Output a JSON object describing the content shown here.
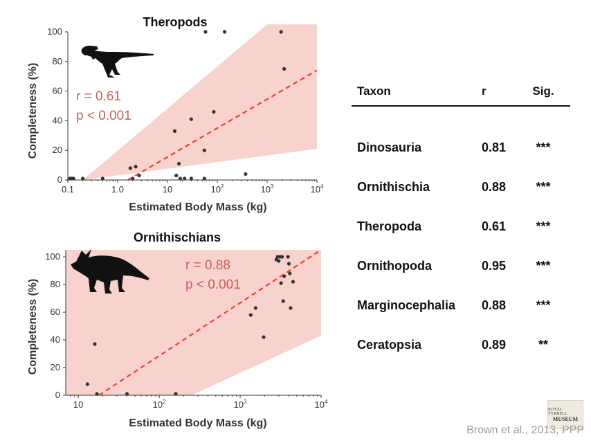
{
  "charts": [
    {
      "title": "Theropods",
      "xlabel": "Estimated Body Mass (kg)",
      "ylabel": "Completeness (%)",
      "stat_r": "r = 0.61",
      "stat_p": "p < 0.001",
      "silhouette": "theropod-silhouette"
    },
    {
      "title": "Ornithischians",
      "xlabel": "Estimated Body Mass (kg)",
      "ylabel": "Completeness (%)",
      "stat_r": "r = 0.88",
      "stat_p": "p < 0.001",
      "silhouette": "ceratopsian-silhouette"
    }
  ],
  "chart_data": [
    {
      "type": "scatter",
      "title": "Theropods",
      "xlabel": "Estimated Body Mass (kg)",
      "ylabel": "Completeness (%)",
      "xscale": "log",
      "xlim": [
        0.1,
        10000
      ],
      "ylim": [
        0,
        100
      ],
      "x_ticks": [
        0.1,
        1,
        10,
        100,
        1000,
        10000
      ],
      "x_tick_labels": [
        "0.1",
        "1.0",
        "10",
        "10^2",
        "10^3",
        "10^4"
      ],
      "y_ticks": [
        0,
        20,
        40,
        60,
        80,
        100
      ],
      "grid": false,
      "points": [
        {
          "x": 0.11,
          "y": 1
        },
        {
          "x": 0.12,
          "y": 1
        },
        {
          "x": 0.13,
          "y": 1
        },
        {
          "x": 0.2,
          "y": 1
        },
        {
          "x": 0.5,
          "y": 1
        },
        {
          "x": 1.8,
          "y": 8
        },
        {
          "x": 2.0,
          "y": 1
        },
        {
          "x": 2.3,
          "y": 9
        },
        {
          "x": 2.7,
          "y": 3
        },
        {
          "x": 14,
          "y": 33
        },
        {
          "x": 15,
          "y": 3
        },
        {
          "x": 17,
          "y": 11
        },
        {
          "x": 18,
          "y": 1
        },
        {
          "x": 22,
          "y": 1
        },
        {
          "x": 30,
          "y": 41
        },
        {
          "x": 30,
          "y": 1
        },
        {
          "x": 55,
          "y": 20
        },
        {
          "x": 55,
          "y": 1
        },
        {
          "x": 58,
          "y": 100
        },
        {
          "x": 85,
          "y": 46
        },
        {
          "x": 140,
          "y": 100
        },
        {
          "x": 370,
          "y": 4
        },
        {
          "x": 1900,
          "y": 100
        },
        {
          "x": 2200,
          "y": 75
        }
      ],
      "trend": {
        "x": [
          1.6,
          10000
        ],
        "y": [
          0,
          74
        ]
      },
      "band": {
        "x_start": 0.2,
        "upper_y_at_x0_1": 0,
        "upper_y_at_1000": 105,
        "lower_y_at_10000": 21
      },
      "colors": {
        "points": "#333333",
        "trend": "#e8412c",
        "band": "#f8d2cd"
      },
      "annotations": [
        "r = 0.61",
        "p < 0.001"
      ]
    },
    {
      "type": "scatter",
      "title": "Ornithischians",
      "xlabel": "Estimated Body Mass (kg)",
      "ylabel": "Completeness (%)",
      "xscale": "log",
      "xlim": [
        7,
        10000
      ],
      "ylim": [
        0,
        105
      ],
      "x_ticks": [
        10,
        100,
        1000,
        10000
      ],
      "x_tick_labels": [
        "10",
        "10^2",
        "10^3",
        "10^4"
      ],
      "y_ticks": [
        0,
        20,
        40,
        60,
        80,
        100
      ],
      "grid": false,
      "points": [
        {
          "x": 13,
          "y": 8
        },
        {
          "x": 16,
          "y": 37
        },
        {
          "x": 17,
          "y": 1
        },
        {
          "x": 40,
          "y": 1
        },
        {
          "x": 160,
          "y": 1
        },
        {
          "x": 1350,
          "y": 58
        },
        {
          "x": 1550,
          "y": 63
        },
        {
          "x": 1950,
          "y": 42
        },
        {
          "x": 2800,
          "y": 98
        },
        {
          "x": 2900,
          "y": 100
        },
        {
          "x": 3000,
          "y": 97
        },
        {
          "x": 3100,
          "y": 100
        },
        {
          "x": 3200,
          "y": 81
        },
        {
          "x": 3300,
          "y": 100
        },
        {
          "x": 3400,
          "y": 68
        },
        {
          "x": 3500,
          "y": 86
        },
        {
          "x": 3900,
          "y": 100
        },
        {
          "x": 4000,
          "y": 95
        },
        {
          "x": 4100,
          "y": 88
        },
        {
          "x": 4200,
          "y": 63
        },
        {
          "x": 4500,
          "y": 82
        }
      ],
      "trend": {
        "x": [
          18,
          10000
        ],
        "y": [
          0,
          105
        ]
      },
      "band": {
        "upper_y_at_x0": 105,
        "lower_y_at_x0": 30,
        "lower_y_at_250": 0,
        "lower_y_at_10000": 43
      },
      "colors": {
        "points": "#333333",
        "trend": "#e8412c",
        "band": "#f8d2cd"
      },
      "annotations": [
        "r = 0.88",
        "p < 0.001"
      ]
    }
  ],
  "table": {
    "headers": {
      "taxon": "Taxon",
      "r": "r",
      "sig": "Sig."
    },
    "rows": [
      {
        "taxon": "Dinosauria",
        "r": "0.81",
        "sig": "***"
      },
      {
        "taxon": "Ornithischia",
        "r": "0.88",
        "sig": "***"
      },
      {
        "taxon": "Theropoda",
        "r": "0.61",
        "sig": "***"
      },
      {
        "taxon": "Ornithopoda",
        "r": "0.95",
        "sig": "***"
      },
      {
        "taxon": "Marginocephalia",
        "r": "0.88",
        "sig": "***"
      },
      {
        "taxon": "Ceratopsia",
        "r": "0.89",
        "sig": "**"
      }
    ]
  },
  "citation": "Brown et al., 2013, PPP",
  "logo": {
    "line1": "ROYAL TYRRELL",
    "line2": "MUSEUM"
  }
}
